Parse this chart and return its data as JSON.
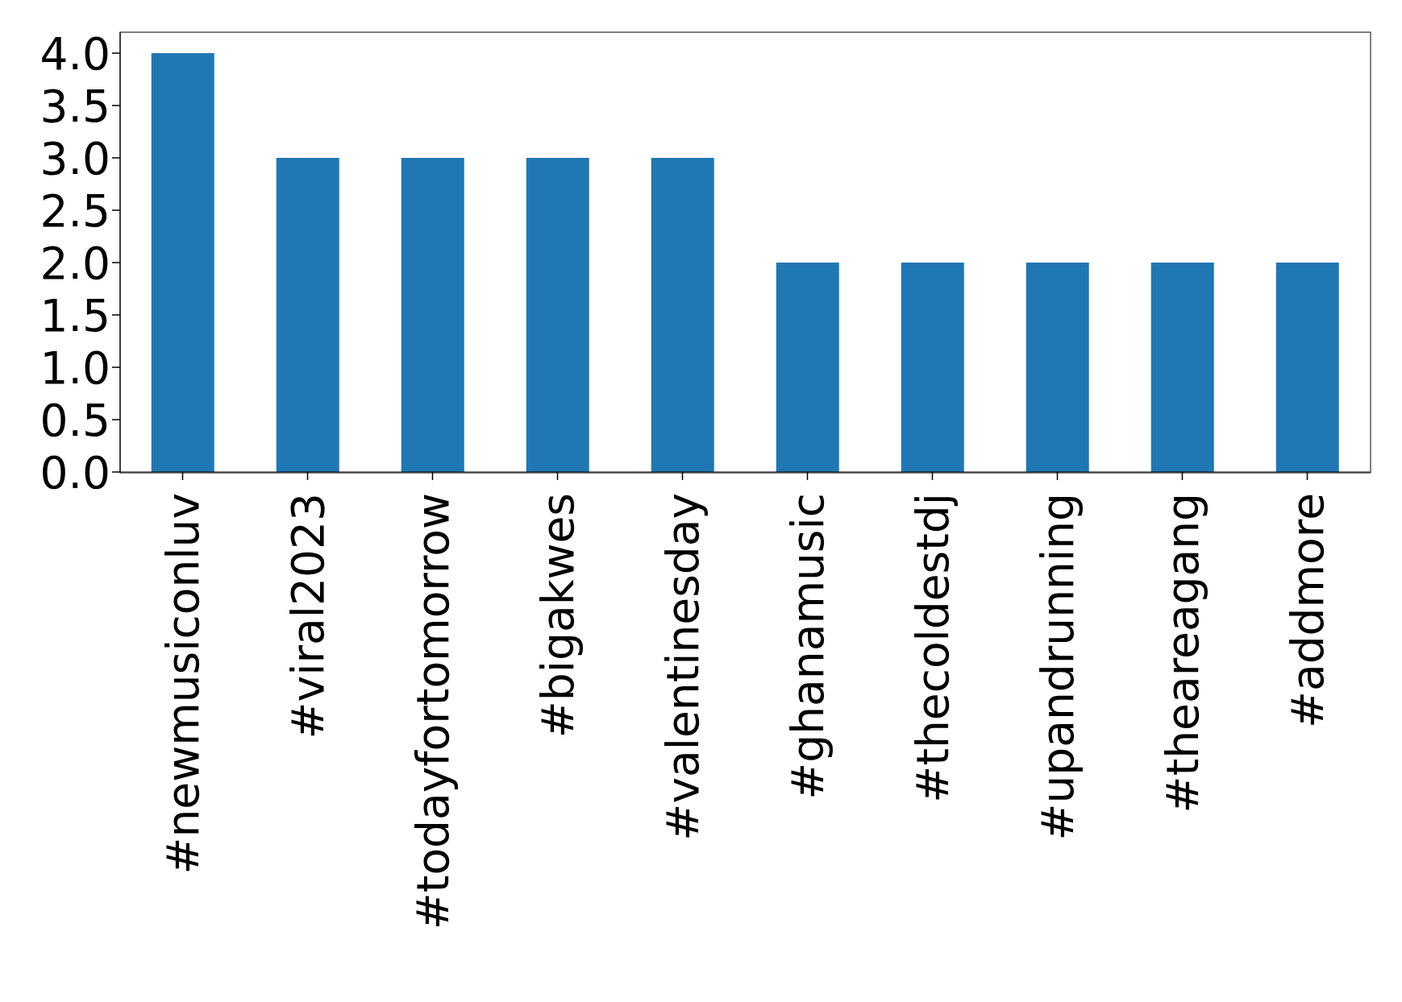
{
  "chart_data": {
    "type": "bar",
    "categories": [
      "#newmusiconluv",
      "#viral2023",
      "#todayfortomorrow",
      "#bigakwes",
      "#valentinesday",
      "#ghanamusic",
      "#thecoldestdj",
      "#upandrunning",
      "#theareagang",
      "#addmore"
    ],
    "values": [
      4,
      3,
      3,
      3,
      3,
      2,
      2,
      2,
      2,
      2
    ],
    "color": "#1f77b4",
    "ylim": [
      0,
      4.2
    ],
    "yticks": [
      {
        "value": 0,
        "label": "0.0"
      },
      {
        "value": 0.5,
        "label": "0.5"
      },
      {
        "value": 1,
        "label": "1.0"
      },
      {
        "value": 1.5,
        "label": "1.5"
      },
      {
        "value": 2,
        "label": "2.0"
      },
      {
        "value": 2.5,
        "label": "2.5"
      },
      {
        "value": 3,
        "label": "3.0"
      },
      {
        "value": 3.5,
        "label": "3.5"
      },
      {
        "value": 4,
        "label": "4.0"
      }
    ],
    "grid": false,
    "legend": false
  }
}
